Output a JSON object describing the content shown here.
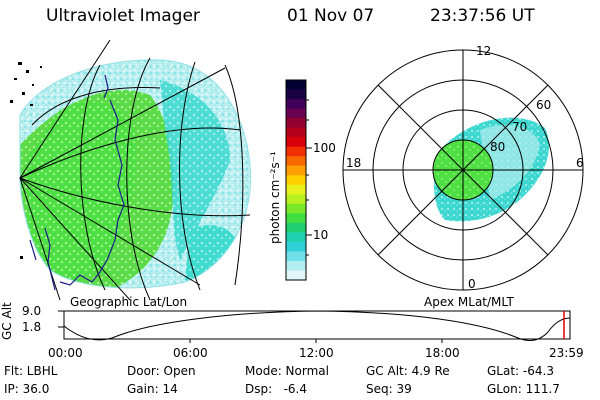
{
  "header": {
    "title": "Ultraviolet Imager",
    "date": "01 Nov 07",
    "time": "23:37:56 UT"
  },
  "geo_panel": {
    "label": "Geographic Lat/Lon"
  },
  "polar_panel": {
    "label": "Apex MLat/MLT",
    "mlt_labels": {
      "top": "12",
      "bottom": "0",
      "left": "18",
      "right": "6"
    },
    "lat_labels": [
      "60",
      "70",
      "80"
    ]
  },
  "colorbar": {
    "unit_label": "photon cm⁻²s⁻¹",
    "tick_100": "100",
    "tick_10": "10",
    "colors": [
      "#000033",
      "#1a0040",
      "#40005a",
      "#6a0050",
      "#900030",
      "#b40018",
      "#d80008",
      "#f03000",
      "#f86a00",
      "#ffa000",
      "#ffd000",
      "#e8f020",
      "#b8f020",
      "#78e828",
      "#40e040",
      "#20d070",
      "#20d0b0",
      "#30d0d8",
      "#70e0e8",
      "#b0eef0",
      "#e0f6f8"
    ]
  },
  "timeline": {
    "ylabel": "GC Alt",
    "y_top": "9.0",
    "y_bottom": "1.8",
    "ticks": [
      "00:00",
      "06:00",
      "12:00",
      "18:00",
      "23:59"
    ]
  },
  "info": {
    "flt": "Flt: LBHL",
    "ip": "IP: 36.0",
    "door": "Door: Open",
    "gain": "Gain: 14",
    "mode": "Mode: Normal",
    "dsp": "Dsp:   -6.4",
    "gcalt": "GC Alt: 4.9 Re",
    "seq": "Seq: 39",
    "glat": "GLat: -64.3",
    "glon": "GLon: 111.7"
  },
  "colors": {
    "aurora_green": "#4ee040",
    "aurora_cyan": "#3cd8d0",
    "aurora_pale": "#b0ecee",
    "coast": "#1a1a8a",
    "marker": "#e00000"
  }
}
